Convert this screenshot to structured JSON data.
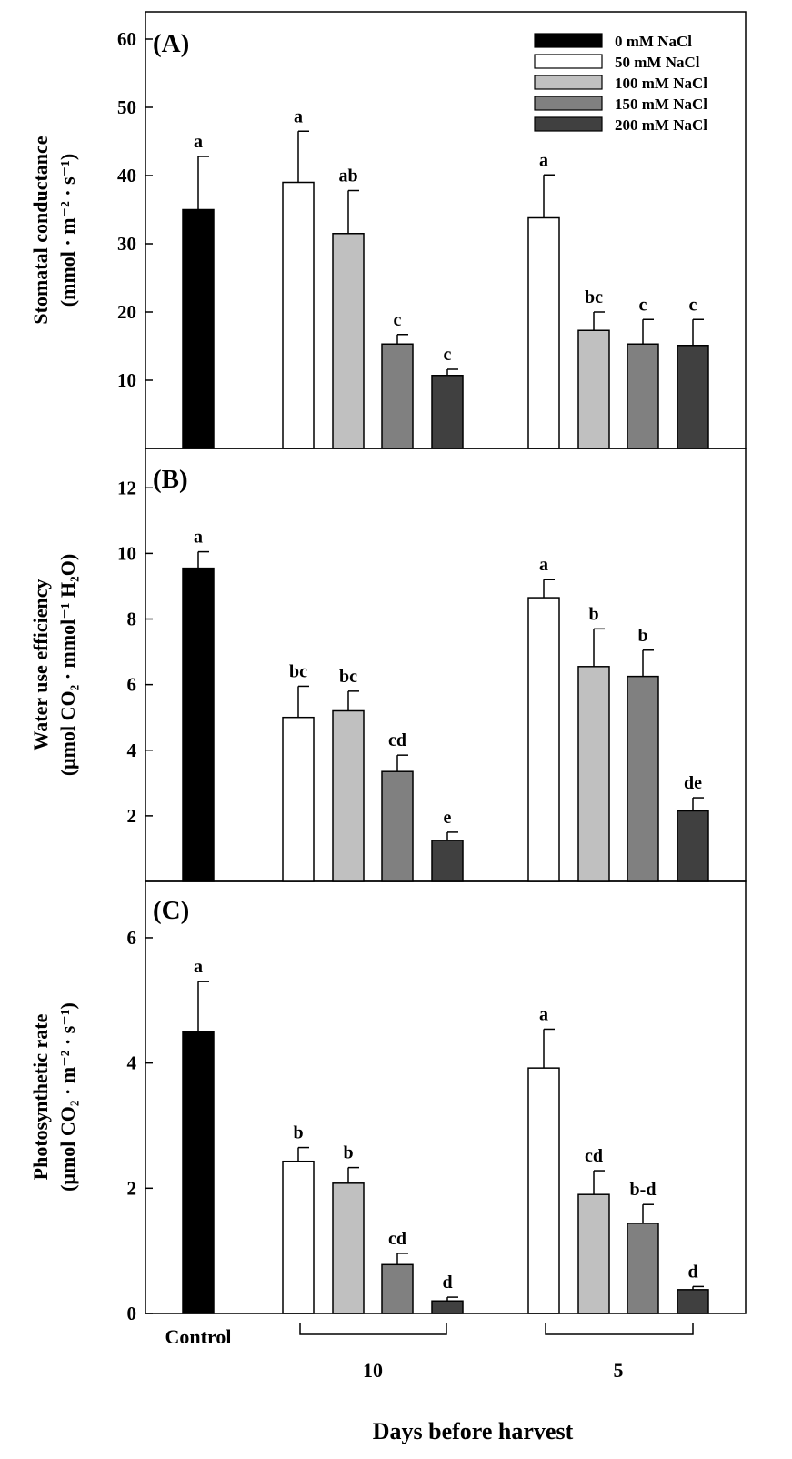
{
  "figure": {
    "xlabel": "Days before harvest",
    "group_labels": [
      "Control",
      "10",
      "5"
    ]
  },
  "legend": [
    {
      "label": "0 mM NaCl",
      "color": "#000000"
    },
    {
      "label": "50 mM NaCl",
      "color": "#ffffff"
    },
    {
      "label": "100 mM NaCl",
      "color": "#c0c0c0"
    },
    {
      "label": "150 mM NaCl",
      "color": "#808080"
    },
    {
      "label": "200 mM NaCl",
      "color": "#404040"
    }
  ],
  "chart_data": [
    {
      "type": "bar",
      "panel": "(A)",
      "ylabel_line1": "Stomatal conductance",
      "ylabel_line2": "(mmol · m⁻² · s⁻¹)",
      "ylim": [
        0,
        64
      ],
      "yticks": [
        10,
        20,
        30,
        40,
        50,
        60
      ],
      "categories": [
        "Control",
        "10",
        "5"
      ],
      "bars": [
        {
          "group": "Control",
          "series": "0 mM NaCl",
          "value": 35.0,
          "error": 7.8,
          "letter": "a"
        },
        {
          "group": "10",
          "series": "50 mM NaCl",
          "value": 39.0,
          "error": 7.5,
          "letter": "a"
        },
        {
          "group": "10",
          "series": "100 mM NaCl",
          "value": 31.5,
          "error": 6.3,
          "letter": "ab"
        },
        {
          "group": "10",
          "series": "150 mM NaCl",
          "value": 15.3,
          "error": 1.4,
          "letter": "c"
        },
        {
          "group": "10",
          "series": "200 mM NaCl",
          "value": 10.7,
          "error": 0.9,
          "letter": "c"
        },
        {
          "group": "5",
          "series": "50 mM NaCl",
          "value": 33.8,
          "error": 6.3,
          "letter": "a"
        },
        {
          "group": "5",
          "series": "100 mM NaCl",
          "value": 17.3,
          "error": 2.7,
          "letter": "bc"
        },
        {
          "group": "5",
          "series": "150 mM NaCl",
          "value": 15.3,
          "error": 3.6,
          "letter": "c"
        },
        {
          "group": "5",
          "series": "200 mM NaCl",
          "value": 15.1,
          "error": 3.8,
          "letter": "c"
        }
      ]
    },
    {
      "type": "bar",
      "panel": "(B)",
      "ylabel_line1": "Water use efficiency",
      "ylabel_line2": "(μmol CO₂ · mmol⁻¹ H₂O)",
      "ylim": [
        0,
        13.2
      ],
      "yticks": [
        2,
        4,
        6,
        8,
        10,
        12
      ],
      "categories": [
        "Control",
        "10",
        "5"
      ],
      "bars": [
        {
          "group": "Control",
          "series": "0 mM NaCl",
          "value": 9.55,
          "error": 0.5,
          "letter": "a"
        },
        {
          "group": "10",
          "series": "50 mM NaCl",
          "value": 5.0,
          "error": 0.95,
          "letter": "bc"
        },
        {
          "group": "10",
          "series": "100 mM NaCl",
          "value": 5.2,
          "error": 0.6,
          "letter": "bc"
        },
        {
          "group": "10",
          "series": "150 mM NaCl",
          "value": 3.35,
          "error": 0.5,
          "letter": "cd"
        },
        {
          "group": "10",
          "series": "200 mM NaCl",
          "value": 1.25,
          "error": 0.25,
          "letter": "e"
        },
        {
          "group": "5",
          "series": "50 mM NaCl",
          "value": 8.65,
          "error": 0.55,
          "letter": "a"
        },
        {
          "group": "5",
          "series": "100 mM NaCl",
          "value": 6.55,
          "error": 1.15,
          "letter": "b"
        },
        {
          "group": "5",
          "series": "150 mM NaCl",
          "value": 6.25,
          "error": 0.8,
          "letter": "b"
        },
        {
          "group": "5",
          "series": "200 mM NaCl",
          "value": 2.15,
          "error": 0.4,
          "letter": "de"
        }
      ]
    },
    {
      "type": "bar",
      "panel": "(C)",
      "ylabel_line1": "Photosynthetic rate",
      "ylabel_line2": "(μmol CO₂ · m⁻² · s⁻¹)",
      "ylim": [
        0,
        6.9
      ],
      "yticks": [
        0,
        2,
        4,
        6
      ],
      "categories": [
        "Control",
        "10",
        "5"
      ],
      "bars": [
        {
          "group": "Control",
          "series": "0 mM NaCl",
          "value": 4.5,
          "error": 0.8,
          "letter": "a"
        },
        {
          "group": "10",
          "series": "50 mM NaCl",
          "value": 2.43,
          "error": 0.22,
          "letter": "b"
        },
        {
          "group": "10",
          "series": "100 mM NaCl",
          "value": 2.08,
          "error": 0.25,
          "letter": "b"
        },
        {
          "group": "10",
          "series": "150 mM NaCl",
          "value": 0.78,
          "error": 0.18,
          "letter": "cd"
        },
        {
          "group": "10",
          "series": "200 mM NaCl",
          "value": 0.2,
          "error": 0.06,
          "letter": "d"
        },
        {
          "group": "5",
          "series": "50 mM NaCl",
          "value": 3.92,
          "error": 0.62,
          "letter": "a"
        },
        {
          "group": "5",
          "series": "100 mM NaCl",
          "value": 1.9,
          "error": 0.38,
          "letter": "cd"
        },
        {
          "group": "5",
          "series": "150 mM NaCl",
          "value": 1.44,
          "error": 0.3,
          "letter": "b-d"
        },
        {
          "group": "5",
          "series": "200 mM NaCl",
          "value": 0.38,
          "error": 0.05,
          "letter": "d"
        }
      ]
    }
  ]
}
